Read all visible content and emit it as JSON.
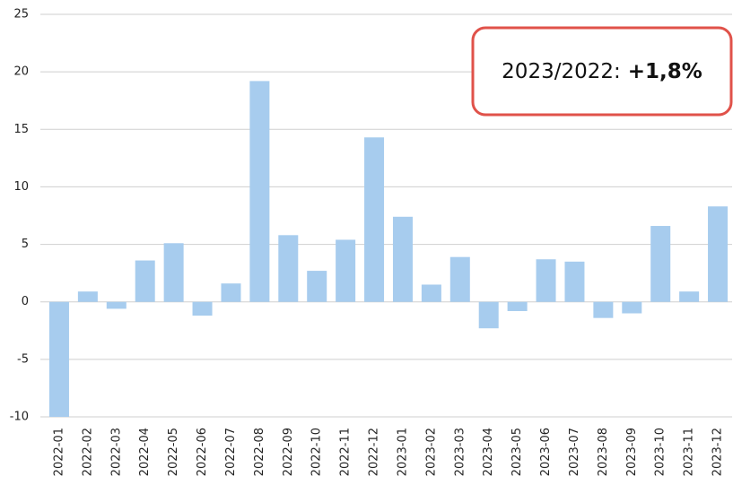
{
  "chart_data": {
    "type": "bar",
    "categories": [
      "2022-01",
      "2022-02",
      "2022-03",
      "2022-04",
      "2022-05",
      "2022-06",
      "2022-07",
      "2022-08",
      "2022-09",
      "2022-10",
      "2022-11",
      "2022-12",
      "2023-01",
      "2023-02",
      "2023-03",
      "2023-04",
      "2023-05",
      "2023-06",
      "2023-07",
      "2023-08",
      "2023-09",
      "2023-10",
      "2023-11",
      "2023-12"
    ],
    "values": [
      -10,
      0.9,
      -0.6,
      3.6,
      5.1,
      -1.2,
      1.6,
      19.2,
      5.8,
      2.7,
      5.4,
      14.3,
      7.4,
      1.5,
      3.9,
      -2.3,
      -0.8,
      3.7,
      3.5,
      -1.4,
      -1.0,
      6.6,
      0.9,
      8.3
    ],
    "color": "#a7ccee",
    "ylim": [
      -10,
      25
    ],
    "yticks": [
      -10,
      -5,
      0,
      5,
      10,
      15,
      20,
      25
    ],
    "grid": true,
    "annotation": {
      "label": "2023/2022:",
      "value": "+1,8%"
    }
  }
}
